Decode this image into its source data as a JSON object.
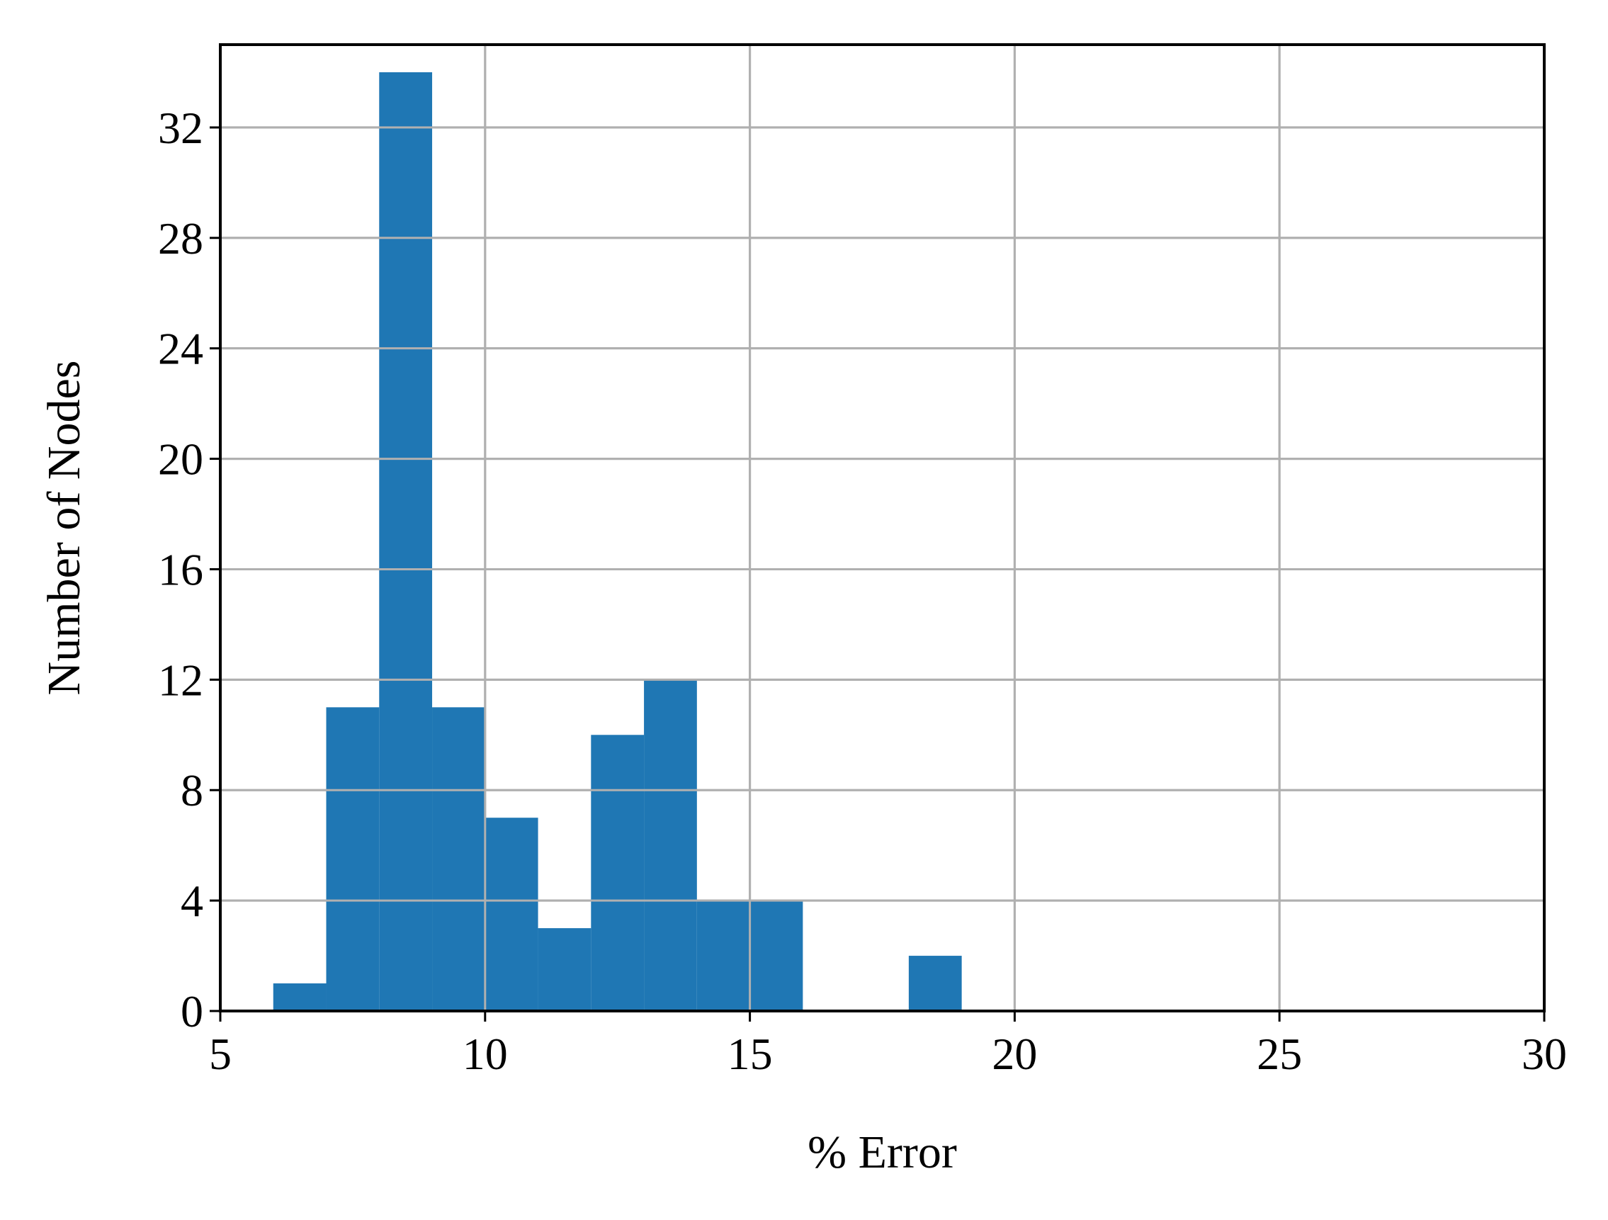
{
  "chart_data": {
    "type": "bar",
    "subtype": "histogram",
    "title": "",
    "xlabel": "% Error",
    "ylabel": "Number of Nodes",
    "xlim": [
      5,
      30
    ],
    "ylim": [
      0,
      35
    ],
    "xticks": [
      5,
      10,
      15,
      20,
      25,
      30
    ],
    "yticks": [
      0,
      4,
      8,
      12,
      16,
      20,
      24,
      28,
      32
    ],
    "grid": true,
    "bar_color": "#1f77b4",
    "grid_color": "#b0b0b0",
    "bins": [
      {
        "x0": 6,
        "x1": 7,
        "count": 1
      },
      {
        "x0": 7,
        "x1": 8,
        "count": 11
      },
      {
        "x0": 8,
        "x1": 9,
        "count": 34
      },
      {
        "x0": 9,
        "x1": 10,
        "count": 11
      },
      {
        "x0": 10,
        "x1": 11,
        "count": 7
      },
      {
        "x0": 11,
        "x1": 12,
        "count": 3
      },
      {
        "x0": 12,
        "x1": 13,
        "count": 10
      },
      {
        "x0": 13,
        "x1": 14,
        "count": 12
      },
      {
        "x0": 14,
        "x1": 15,
        "count": 4
      },
      {
        "x0": 15,
        "x1": 16,
        "count": 4
      },
      {
        "x0": 18,
        "x1": 19,
        "count": 2
      }
    ]
  }
}
